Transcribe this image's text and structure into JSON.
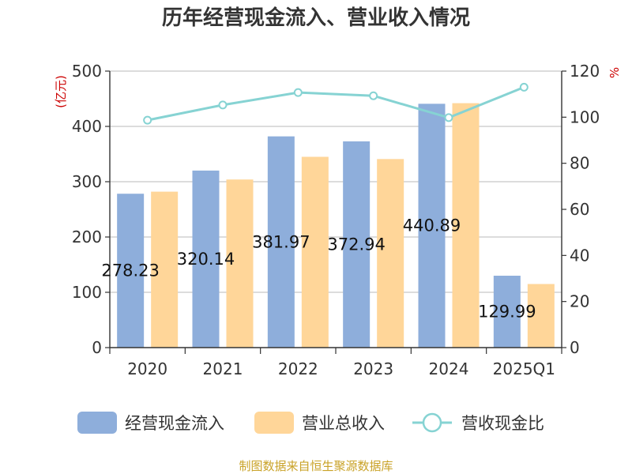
{
  "chart_data": {
    "type": "bar",
    "title": "历年经营现金流入、营业收入情况",
    "categories": [
      "2020",
      "2021",
      "2022",
      "2023",
      "2024",
      "2025Q1"
    ],
    "y_left": {
      "unit_label": "(亿元)",
      "ylim": [
        0,
        500
      ],
      "ticks": [
        "0",
        "100",
        "200",
        "300",
        "400",
        "500"
      ]
    },
    "y_right": {
      "unit_label": "%",
      "ylim": [
        0,
        120
      ],
      "ticks": [
        "0",
        "20",
        "40",
        "60",
        "80",
        "100",
        "120"
      ]
    },
    "series": [
      {
        "name": "经营现金流入",
        "type": "bar",
        "axis": "left",
        "color": "#8eaedb",
        "values": [
          278.23,
          320.14,
          381.97,
          372.94,
          440.89,
          129.99
        ],
        "labels": [
          "278.23",
          "320.14",
          "381.97",
          "372.94",
          "440.89",
          "129.99"
        ]
      },
      {
        "name": "营业总收入",
        "type": "bar",
        "axis": "left",
        "color": "#ffd699",
        "values": [
          282,
          304,
          345,
          341,
          442,
          115
        ]
      },
      {
        "name": "营收现金比",
        "type": "line",
        "axis": "right",
        "color": "#86d3d3",
        "values": [
          98.7,
          105.3,
          110.7,
          109.3,
          99.8,
          113.0
        ]
      }
    ],
    "grid": true,
    "legend_position": "bottom"
  },
  "source": "制图数据来自恒生聚源数据库"
}
